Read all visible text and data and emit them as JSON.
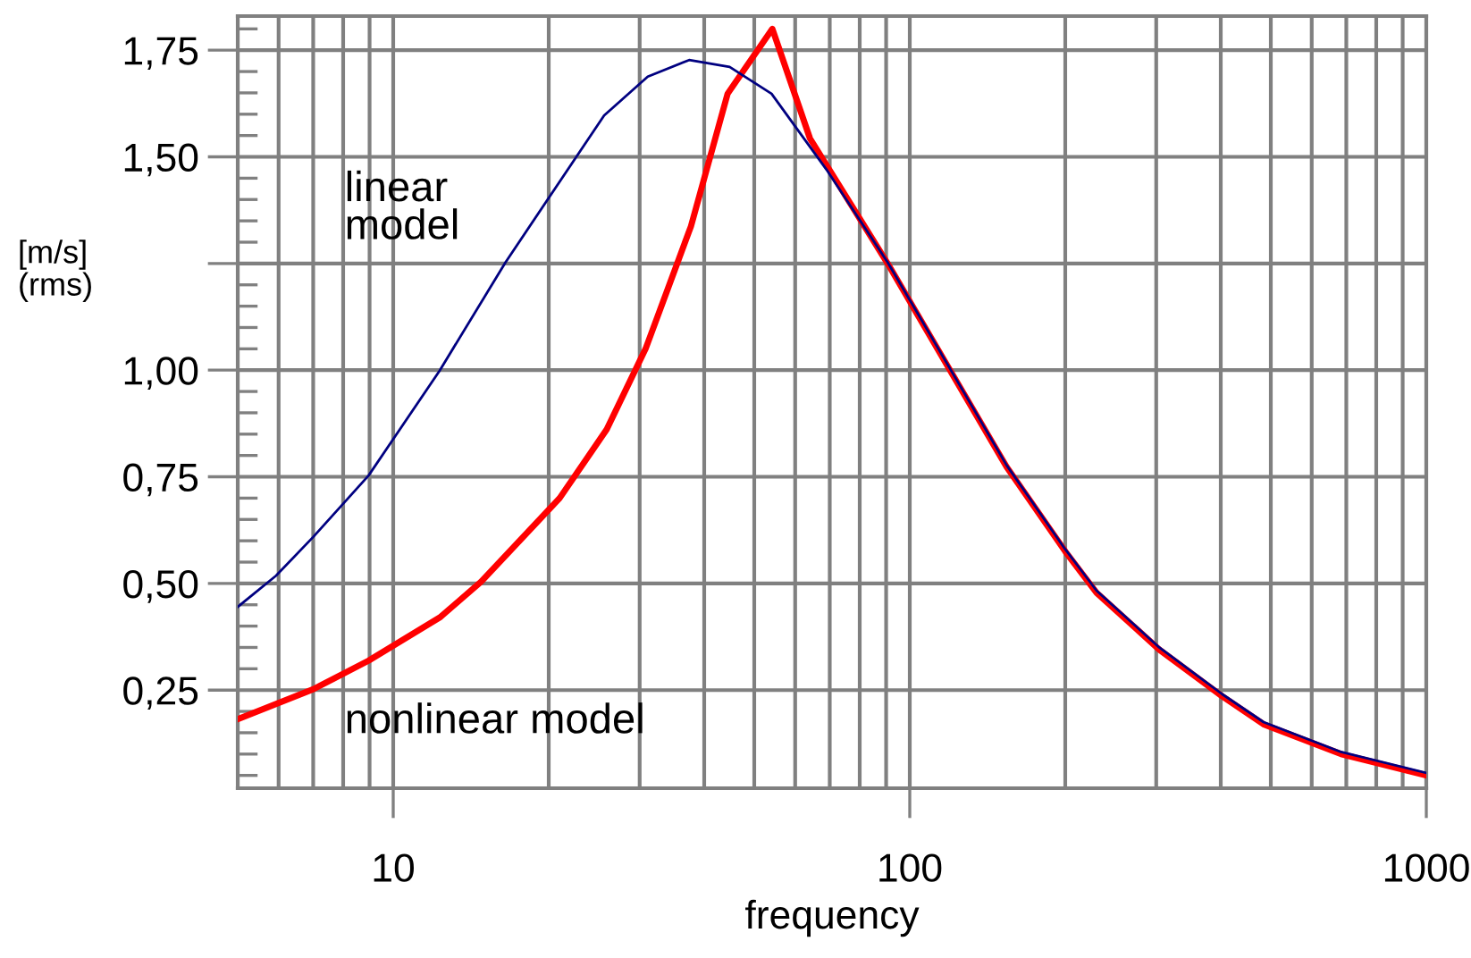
{
  "chart_data": {
    "type": "line",
    "xlabel": "frequency",
    "ylabel": "[m/s]\n(rms)",
    "log": "x",
    "xlim": [
      5,
      1000
    ],
    "ylim": [
      0.02,
      1.83
    ],
    "xticks": [
      {
        "value": 5,
        "label": null
      },
      {
        "value": 6,
        "label": null
      },
      {
        "value": 7,
        "label": null
      },
      {
        "value": 8,
        "label": null
      },
      {
        "value": 9,
        "label": null
      },
      10,
      {
        "value": 20,
        "label": null
      },
      {
        "value": 30,
        "label": null
      },
      {
        "value": 40,
        "label": null
      },
      {
        "value": 50,
        "label": null
      },
      {
        "value": 60,
        "label": null
      },
      {
        "value": 70,
        "label": null
      },
      {
        "value": 80,
        "label": null
      },
      {
        "value": 90,
        "label": null
      },
      100,
      {
        "value": 200,
        "label": null
      },
      {
        "value": 300,
        "label": null
      },
      {
        "value": 400,
        "label": null
      },
      {
        "value": 500,
        "label": null
      },
      {
        "value": 600,
        "label": null
      },
      {
        "value": 700,
        "label": null
      },
      {
        "value": 800,
        "label": null
      },
      {
        "value": 900,
        "label": null
      },
      1000
    ],
    "yticks": [
      {
        "value": 0.25,
        "label": "0,25"
      },
      {
        "value": 0.5,
        "label": "0,50"
      },
      {
        "value": 0.75,
        "label": "0,75"
      },
      {
        "value": 1.0,
        "label": "1,00"
      },
      {
        "value": 1.25,
        "label": null
      },
      {
        "value": 1.5,
        "label": "1,50"
      },
      {
        "value": 1.75,
        "label": "1,75"
      }
    ],
    "grid": true,
    "legend": false,
    "marker": "none",
    "line_style": "solid",
    "series": [
      {
        "name": "linear\nmodel",
        "color": "#000080",
        "x": [
          5,
          5.93,
          7.0,
          8.96,
          12.3,
          16.5,
          25.6,
          31.1,
          37.4,
          44.8,
          54.0,
          69,
          90.6,
          154,
          200,
          230,
          304,
          402,
          484,
          684,
          1000
        ],
        "values": [
          0.445,
          0.518,
          0.609,
          0.753,
          0.999,
          1.253,
          1.597,
          1.688,
          1.727,
          1.711,
          1.648,
          1.47,
          1.253,
          0.777,
          0.58,
          0.483,
          0.35,
          0.241,
          0.175,
          0.105,
          0.056
        ]
      },
      {
        "name": "nonlinear model",
        "color": "#ff0000",
        "x": [
          5,
          7.0,
          8.96,
          12.3,
          14.8,
          21.0,
          25.9,
          30.8,
          37.7,
          44.4,
          54.2,
          64.1,
          90.6,
          154,
          200,
          230,
          304,
          402,
          484,
          684,
          1000
        ],
        "values": [
          0.182,
          0.252,
          0.319,
          0.42,
          0.504,
          0.7,
          0.861,
          1.05,
          1.337,
          1.648,
          1.8,
          1.543,
          1.25,
          0.773,
          0.575,
          0.478,
          0.345,
          0.236,
          0.17,
          0.1,
          0.05
        ]
      }
    ]
  }
}
